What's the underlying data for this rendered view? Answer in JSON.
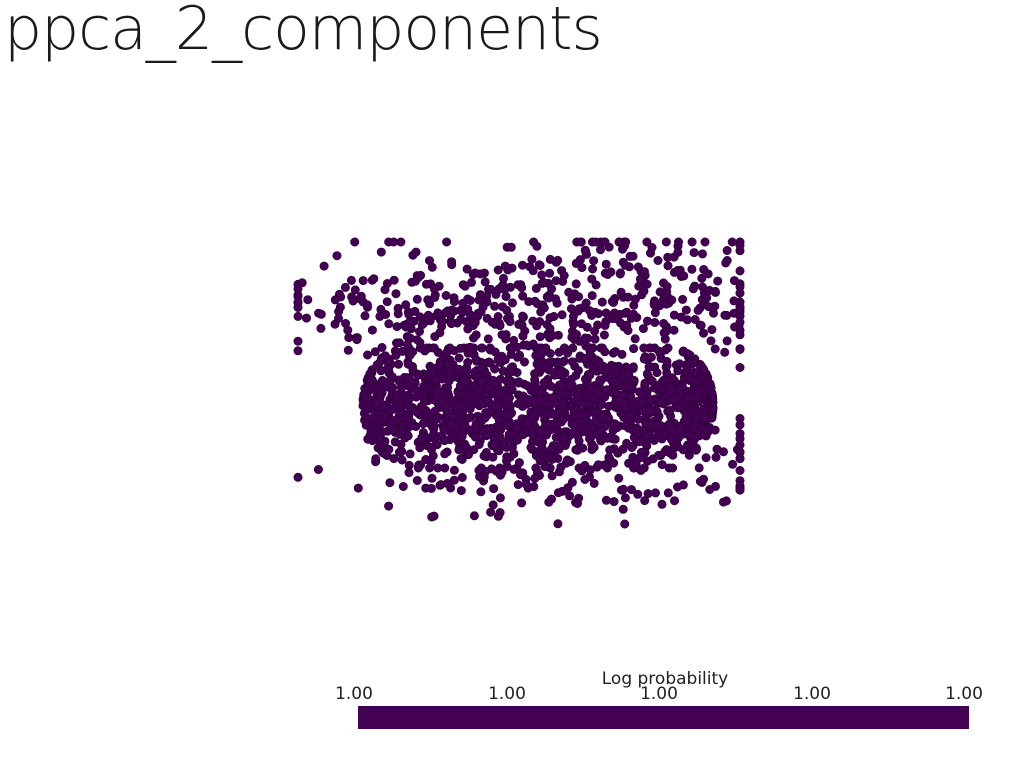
{
  "chart_data": {
    "type": "scatter",
    "title": "ppca_2_components",
    "point_color": "#440154",
    "colorbar": {
      "label": "Log probability",
      "ticks": [
        "1.00",
        "1.00",
        "1.00",
        "1.00",
        "1.00"
      ],
      "color": "#440154",
      "placement": "bottom"
    },
    "clusters": [
      {
        "name": "",
        "kind": "dense-band",
        "count": 1400,
        "seed": 11
      },
      {
        "name": "",
        "kind": "upper-left-scatter",
        "count": 260,
        "seed": 23
      },
      {
        "name": "",
        "kind": "upper-right-scatter",
        "count": 260,
        "seed": 37
      },
      {
        "name": "",
        "kind": "lower-scatter",
        "count": 180,
        "seed": 51
      }
    ],
    "grid": false
  }
}
